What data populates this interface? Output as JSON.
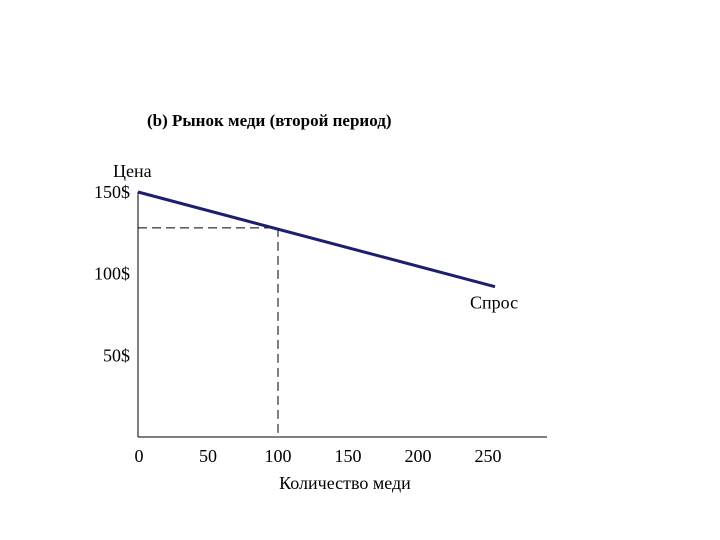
{
  "chart_data": {
    "type": "line",
    "title": "(b) Рынок меди (второй период)",
    "ylabel": "Цена",
    "xlabel": "Количество меди",
    "x_ticks": [
      {
        "value": 0,
        "label": "0"
      },
      {
        "value": 50,
        "label": "50"
      },
      {
        "value": 100,
        "label": "100"
      },
      {
        "value": 150,
        "label": "150"
      },
      {
        "value": 200,
        "label": "200"
      },
      {
        "value": 250,
        "label": "250"
      }
    ],
    "y_ticks": [
      {
        "value": 150,
        "label": "150$"
      },
      {
        "value": 100,
        "label": "100$"
      },
      {
        "value": 50,
        "label": "50$"
      }
    ],
    "xlim": [
      0,
      290
    ],
    "ylim": [
      0,
      150
    ],
    "series": [
      {
        "name": "Спрос",
        "x": [
          0,
          255
        ],
        "y": [
          150,
          92
        ],
        "color": "#1a1f6e"
      }
    ],
    "reference_point": {
      "x": 100,
      "y": 128
    },
    "grid": false
  }
}
